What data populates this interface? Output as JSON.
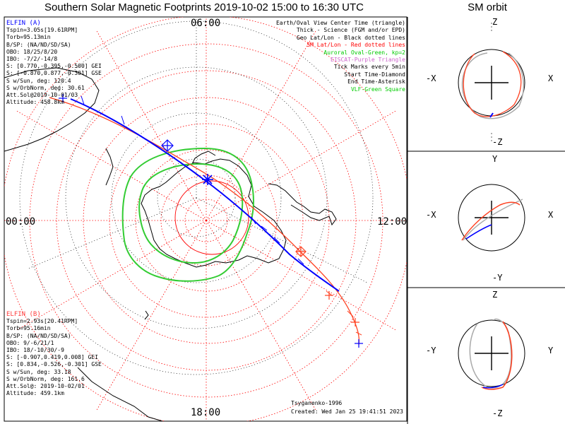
{
  "title": "Southern Solar Magnetic Footprints 2019-10-02 15:00 to 16:30 UTC",
  "orbit_title": "SM orbit",
  "map": {
    "time_labels": {
      "top": "06:00",
      "left": "00:00",
      "right": "12:00",
      "bottom": "18:00"
    }
  },
  "elfin_a": {
    "name": "ELFIN (A)",
    "color": "#0000ff",
    "lines": [
      "Tspin=3.05s[19.61RPM]",
      "Torb=95.13min",
      "B/SP: (NA/ND/SD/SA)",
      "OBO: 18/25/8/20",
      "IBO: -7/2/-14/8",
      "S: [0.770,-0.395,-0.500] GEI",
      "S: [-0.870,0.877,-0.301] GSE",
      "S w/Sun, deg: 120.4",
      "S w/OrbNorm, deg: 30.61",
      "Att.Sol@2019-10-01/03",
      "Altitude: 458.8km"
    ]
  },
  "elfin_b": {
    "name": "ELFIN (B)",
    "color": "#ff4040",
    "lines": [
      "Tspin=2.93s[20.41RPM]",
      "Torb=95.16min",
      "B/SP: (NA/ND/SD/SA)",
      "OBO: 9/-6/21/1",
      "IBO: 18/-10/30/-9",
      "S: [-0.907,0.419,0.008] GEI",
      "S: [0.834,-0.526,-0.301] GSE",
      "S w/Sun, deg: 33.18",
      "S w/OrbNorm, deg: 161.6",
      "Att.Sol@: 2019-10-02/01",
      "Altitude: 459.1km"
    ]
  },
  "legend": [
    {
      "text": "Earth/Oval View Center Time (triangle)",
      "color": "#000000"
    },
    {
      "text": "Thick - Science (FGM and/or EPD)",
      "color": "#000000"
    },
    {
      "text": "Geo Lat/Lon - Black dotted lines",
      "color": "#000000"
    },
    {
      "text": "SM Lat/Lon - Red dotted lines",
      "color": "#ff0000"
    },
    {
      "text": "Auroral Oval-Green, kp=2",
      "color": "#00cc00"
    },
    {
      "text": "EISCAT-Purple Triangle",
      "color": "#cc66cc"
    },
    {
      "text": "Tick Marks every 5min",
      "color": "#000000"
    },
    {
      "text": "Start Time-Diamond",
      "color": "#000000"
    },
    {
      "text": "End Time-Asterisk",
      "color": "#000000"
    },
    {
      "text": "VLF-Green Square",
      "color": "#00cc00"
    }
  ],
  "credits": {
    "author": "Tsyganenko-1996",
    "created": "Created: Wed Jan 25 19:41:51 2023"
  },
  "orbit_panels": [
    {
      "top": "Z",
      "bottom": "-Z",
      "left": "-X",
      "right": "X"
    },
    {
      "top": "Y",
      "bottom": "-Y",
      "left": "-X",
      "right": "X"
    },
    {
      "top": "Z",
      "bottom": "-Z",
      "left": "-Y",
      "right": "Y"
    }
  ]
}
